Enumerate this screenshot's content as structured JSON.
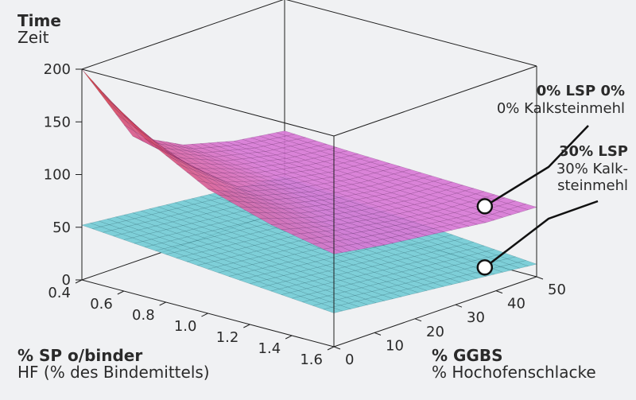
{
  "chart_data": {
    "type": "surface",
    "zlabel": {
      "line1": "Time",
      "line2": "Zeit"
    },
    "xlabel": {
      "line1": "% SP o/binder",
      "line2": "HF  (% des Bindemittels)"
    },
    "ylabel": {
      "line1": "% GGBS",
      "line2": "% Hochofenschlacke"
    },
    "xlim": [
      0.4,
      1.6
    ],
    "ylim": [
      0,
      50
    ],
    "zlim": [
      0,
      200
    ],
    "x_ticks": [
      "0.4",
      "0.6",
      "0.8",
      "1.0",
      "1.2",
      "1.4",
      "1.6"
    ],
    "y_ticks": [
      "0",
      "10",
      "20",
      "30",
      "40",
      "50"
    ],
    "z_ticks": [
      "0",
      "50",
      "100",
      "150",
      "200"
    ],
    "series": [
      {
        "name": "0% LSP",
        "color": "#d87ad6",
        "color_high": "#d8342a",
        "grid_x": [
          0.4,
          0.7,
          1.0,
          1.3,
          1.6
        ],
        "grid_y": [
          0,
          12.5,
          25,
          37.5,
          50
        ],
        "z": [
          [
            200,
            150,
            118,
            100,
            88
          ],
          [
            120,
            105,
            95,
            86,
            80
          ],
          [
            95,
            88,
            82,
            77,
            74
          ],
          [
            82,
            78,
            74,
            71,
            68
          ],
          [
            75,
            72,
            70,
            68,
            66
          ]
        ]
      },
      {
        "name": "30% LSP",
        "color": "#74ccd6",
        "grid_x": [
          0.4,
          0.7,
          1.0,
          1.3,
          1.6
        ],
        "grid_y": [
          0,
          12.5,
          25,
          37.5,
          50
        ],
        "z": [
          [
            52,
            47,
            42,
            37,
            32
          ],
          [
            47,
            42,
            37,
            32,
            27
          ],
          [
            42,
            37,
            32,
            27,
            22
          ],
          [
            37,
            32,
            27,
            22,
            17
          ],
          [
            32,
            27,
            22,
            17,
            12
          ]
        ]
      }
    ],
    "annotations": {
      "top": {
        "bold": "0% LSP  0%",
        "line2": "0% Kalksteinmehl"
      },
      "bottom": {
        "bold": "30% LSP",
        "line2": "30% Kalk-",
        "line3": "steinmehl"
      }
    }
  }
}
